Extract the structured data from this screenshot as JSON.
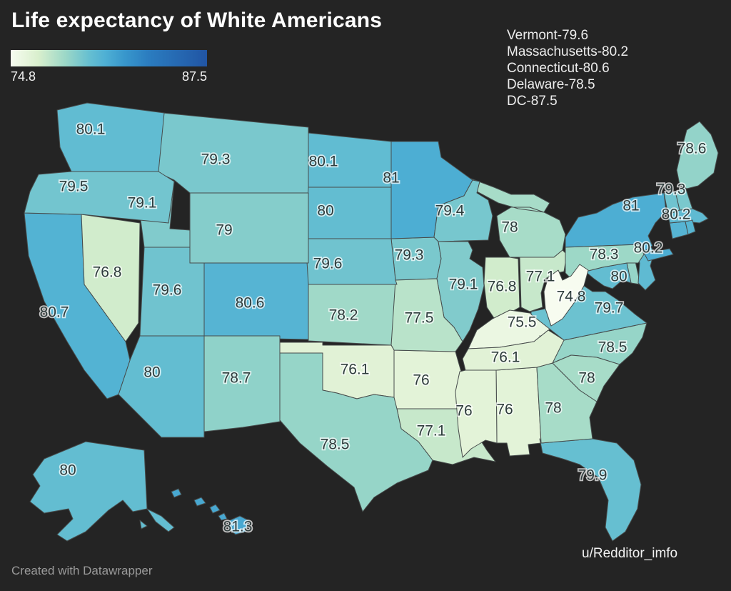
{
  "title": "Life expectancy of White Americans",
  "legend": {
    "min_label": "74.8",
    "max_label": "87.5"
  },
  "annotation_lines": [
    "Vermont-79.6",
    "Massachusetts-80.2",
    "Connecticut-80.6",
    "Delaware-78.5",
    "DC-87.5"
  ],
  "attribution": "Created with Datawrapper",
  "credit": "u/Redditor_imfo",
  "colors": {
    "background": "#242424",
    "border": "#474c4c",
    "label_text": "#2e3c3c",
    "label_halo": "rgba(255,255,255,0.72)",
    "fallback_fill": "#57b6d2",
    "gradient": [
      {
        "c": "#f7fcf0",
        "p": 0.0
      },
      {
        "c": "#d9efcd",
        "p": 0.14
      },
      {
        "c": "#9bd7c7",
        "p": 0.28
      },
      {
        "c": "#66bfd1",
        "p": 0.4
      },
      {
        "c": "#4fb0d4",
        "p": 0.48
      },
      {
        "c": "#3897cc",
        "p": 0.58
      },
      {
        "c": "#2b7dc0",
        "p": 0.7
      },
      {
        "c": "#2155a4",
        "p": 1.0
      }
    ]
  },
  "chart_data": {
    "type": "choropleth_map",
    "region": "United States",
    "metric": "Life expectancy (years)",
    "domain": [
      74.8,
      87.5
    ],
    "states": [
      {
        "code": "AK",
        "name": "Alaska",
        "value": 80,
        "label": "80"
      },
      {
        "code": "AL",
        "name": "Alabama",
        "value": 76,
        "label": "76"
      },
      {
        "code": "AR",
        "name": "Arkansas",
        "value": 76,
        "label": "76"
      },
      {
        "code": "AZ",
        "name": "Arizona",
        "value": 80,
        "label": "80"
      },
      {
        "code": "CA",
        "name": "California",
        "value": 80.7,
        "label": "80.7"
      },
      {
        "code": "CO",
        "name": "Colorado",
        "value": 80.6,
        "label": "80.6"
      },
      {
        "code": "CT",
        "name": "Connecticut",
        "value": 80.6,
        "label": null
      },
      {
        "code": "DC",
        "name": "District of Columbia",
        "value": 87.5,
        "label": null
      },
      {
        "code": "DE",
        "name": "Delaware",
        "value": 78.5,
        "label": null
      },
      {
        "code": "FL",
        "name": "Florida",
        "value": 79.9,
        "label": "79.9"
      },
      {
        "code": "GA",
        "name": "Georgia",
        "value": 78,
        "label": "78"
      },
      {
        "code": "HI",
        "name": "Hawaii",
        "value": 81.3,
        "label": "81.3"
      },
      {
        "code": "IA",
        "name": "Iowa",
        "value": 79.3,
        "label": "79.3"
      },
      {
        "code": "ID",
        "name": "Idaho",
        "value": 79.1,
        "label": "79.1"
      },
      {
        "code": "IL",
        "name": "Illinois",
        "value": 79.1,
        "label": "79.1"
      },
      {
        "code": "IN",
        "name": "Indiana",
        "value": 76.8,
        "label": "76.8"
      },
      {
        "code": "KS",
        "name": "Kansas",
        "value": 78.2,
        "label": "78.2"
      },
      {
        "code": "KY",
        "name": "Kentucky",
        "value": 75.5,
        "label": "75.5"
      },
      {
        "code": "LA",
        "name": "Louisiana",
        "value": 77.1,
        "label": "77.1"
      },
      {
        "code": "MA",
        "name": "Massachusetts",
        "value": 80.2,
        "label": "80.2"
      },
      {
        "code": "MD",
        "name": "Maryland",
        "value": 80,
        "label": "80"
      },
      {
        "code": "ME",
        "name": "Maine",
        "value": 78.6,
        "label": "78.6"
      },
      {
        "code": "MI",
        "name": "Michigan",
        "value": 78,
        "label": "78"
      },
      {
        "code": "MN",
        "name": "Minnesota",
        "value": 81,
        "label": "81"
      },
      {
        "code": "MO",
        "name": "Missouri",
        "value": 77.5,
        "label": "77.5"
      },
      {
        "code": "MS",
        "name": "Mississippi",
        "value": 76,
        "label": "76"
      },
      {
        "code": "MT",
        "name": "Montana",
        "value": 79.3,
        "label": "79.3"
      },
      {
        "code": "NC",
        "name": "North Carolina",
        "value": 78.5,
        "label": "78.5"
      },
      {
        "code": "ND",
        "name": "North Dakota",
        "value": 80.1,
        "label": "80.1"
      },
      {
        "code": "NE",
        "name": "Nebraska",
        "value": 79.6,
        "label": "79.6"
      },
      {
        "code": "NH",
        "name": "New Hampshire",
        "value": 79.3,
        "label": "79.3"
      },
      {
        "code": "NJ",
        "name": "New Jersey",
        "value": 80.2,
        "label": "80.2"
      },
      {
        "code": "NM",
        "name": "New Mexico",
        "value": 78.7,
        "label": "78.7"
      },
      {
        "code": "NV",
        "name": "Nevada",
        "value": 76.8,
        "label": "76.8"
      },
      {
        "code": "NY",
        "name": "New York",
        "value": 81,
        "label": "81"
      },
      {
        "code": "OH",
        "name": "Ohio",
        "value": 77.1,
        "label": "77.1"
      },
      {
        "code": "OK",
        "name": "Oklahoma",
        "value": 76.1,
        "label": "76.1"
      },
      {
        "code": "OR",
        "name": "Oregon",
        "value": 79.5,
        "label": "79.5"
      },
      {
        "code": "PA",
        "name": "Pennsylvania",
        "value": 78.3,
        "label": "78.3"
      },
      {
        "code": "RI",
        "name": "Rhode Island",
        "value": null,
        "label": null
      },
      {
        "code": "SC",
        "name": "South Carolina",
        "value": 78,
        "label": "78"
      },
      {
        "code": "SD",
        "name": "South Dakota",
        "value": 80,
        "label": "80"
      },
      {
        "code": "TN",
        "name": "Tennessee",
        "value": 76.1,
        "label": "76.1"
      },
      {
        "code": "TX",
        "name": "Texas",
        "value": 78.5,
        "label": "78.5"
      },
      {
        "code": "UT",
        "name": "Utah",
        "value": 79.6,
        "label": "79.6"
      },
      {
        "code": "VA",
        "name": "Virginia",
        "value": 79.7,
        "label": "79.7"
      },
      {
        "code": "VT",
        "name": "Vermont",
        "value": 79.6,
        "label": null
      },
      {
        "code": "WA",
        "name": "Washington",
        "value": 80.1,
        "label": "80.1"
      },
      {
        "code": "WI",
        "name": "Wisconsin",
        "value": 79.4,
        "label": "79.4"
      },
      {
        "code": "WV",
        "name": "West Virginia",
        "value": 74.8,
        "label": "74.8"
      },
      {
        "code": "WY",
        "name": "Wyoming",
        "value": 79,
        "label": "79"
      }
    ]
  }
}
